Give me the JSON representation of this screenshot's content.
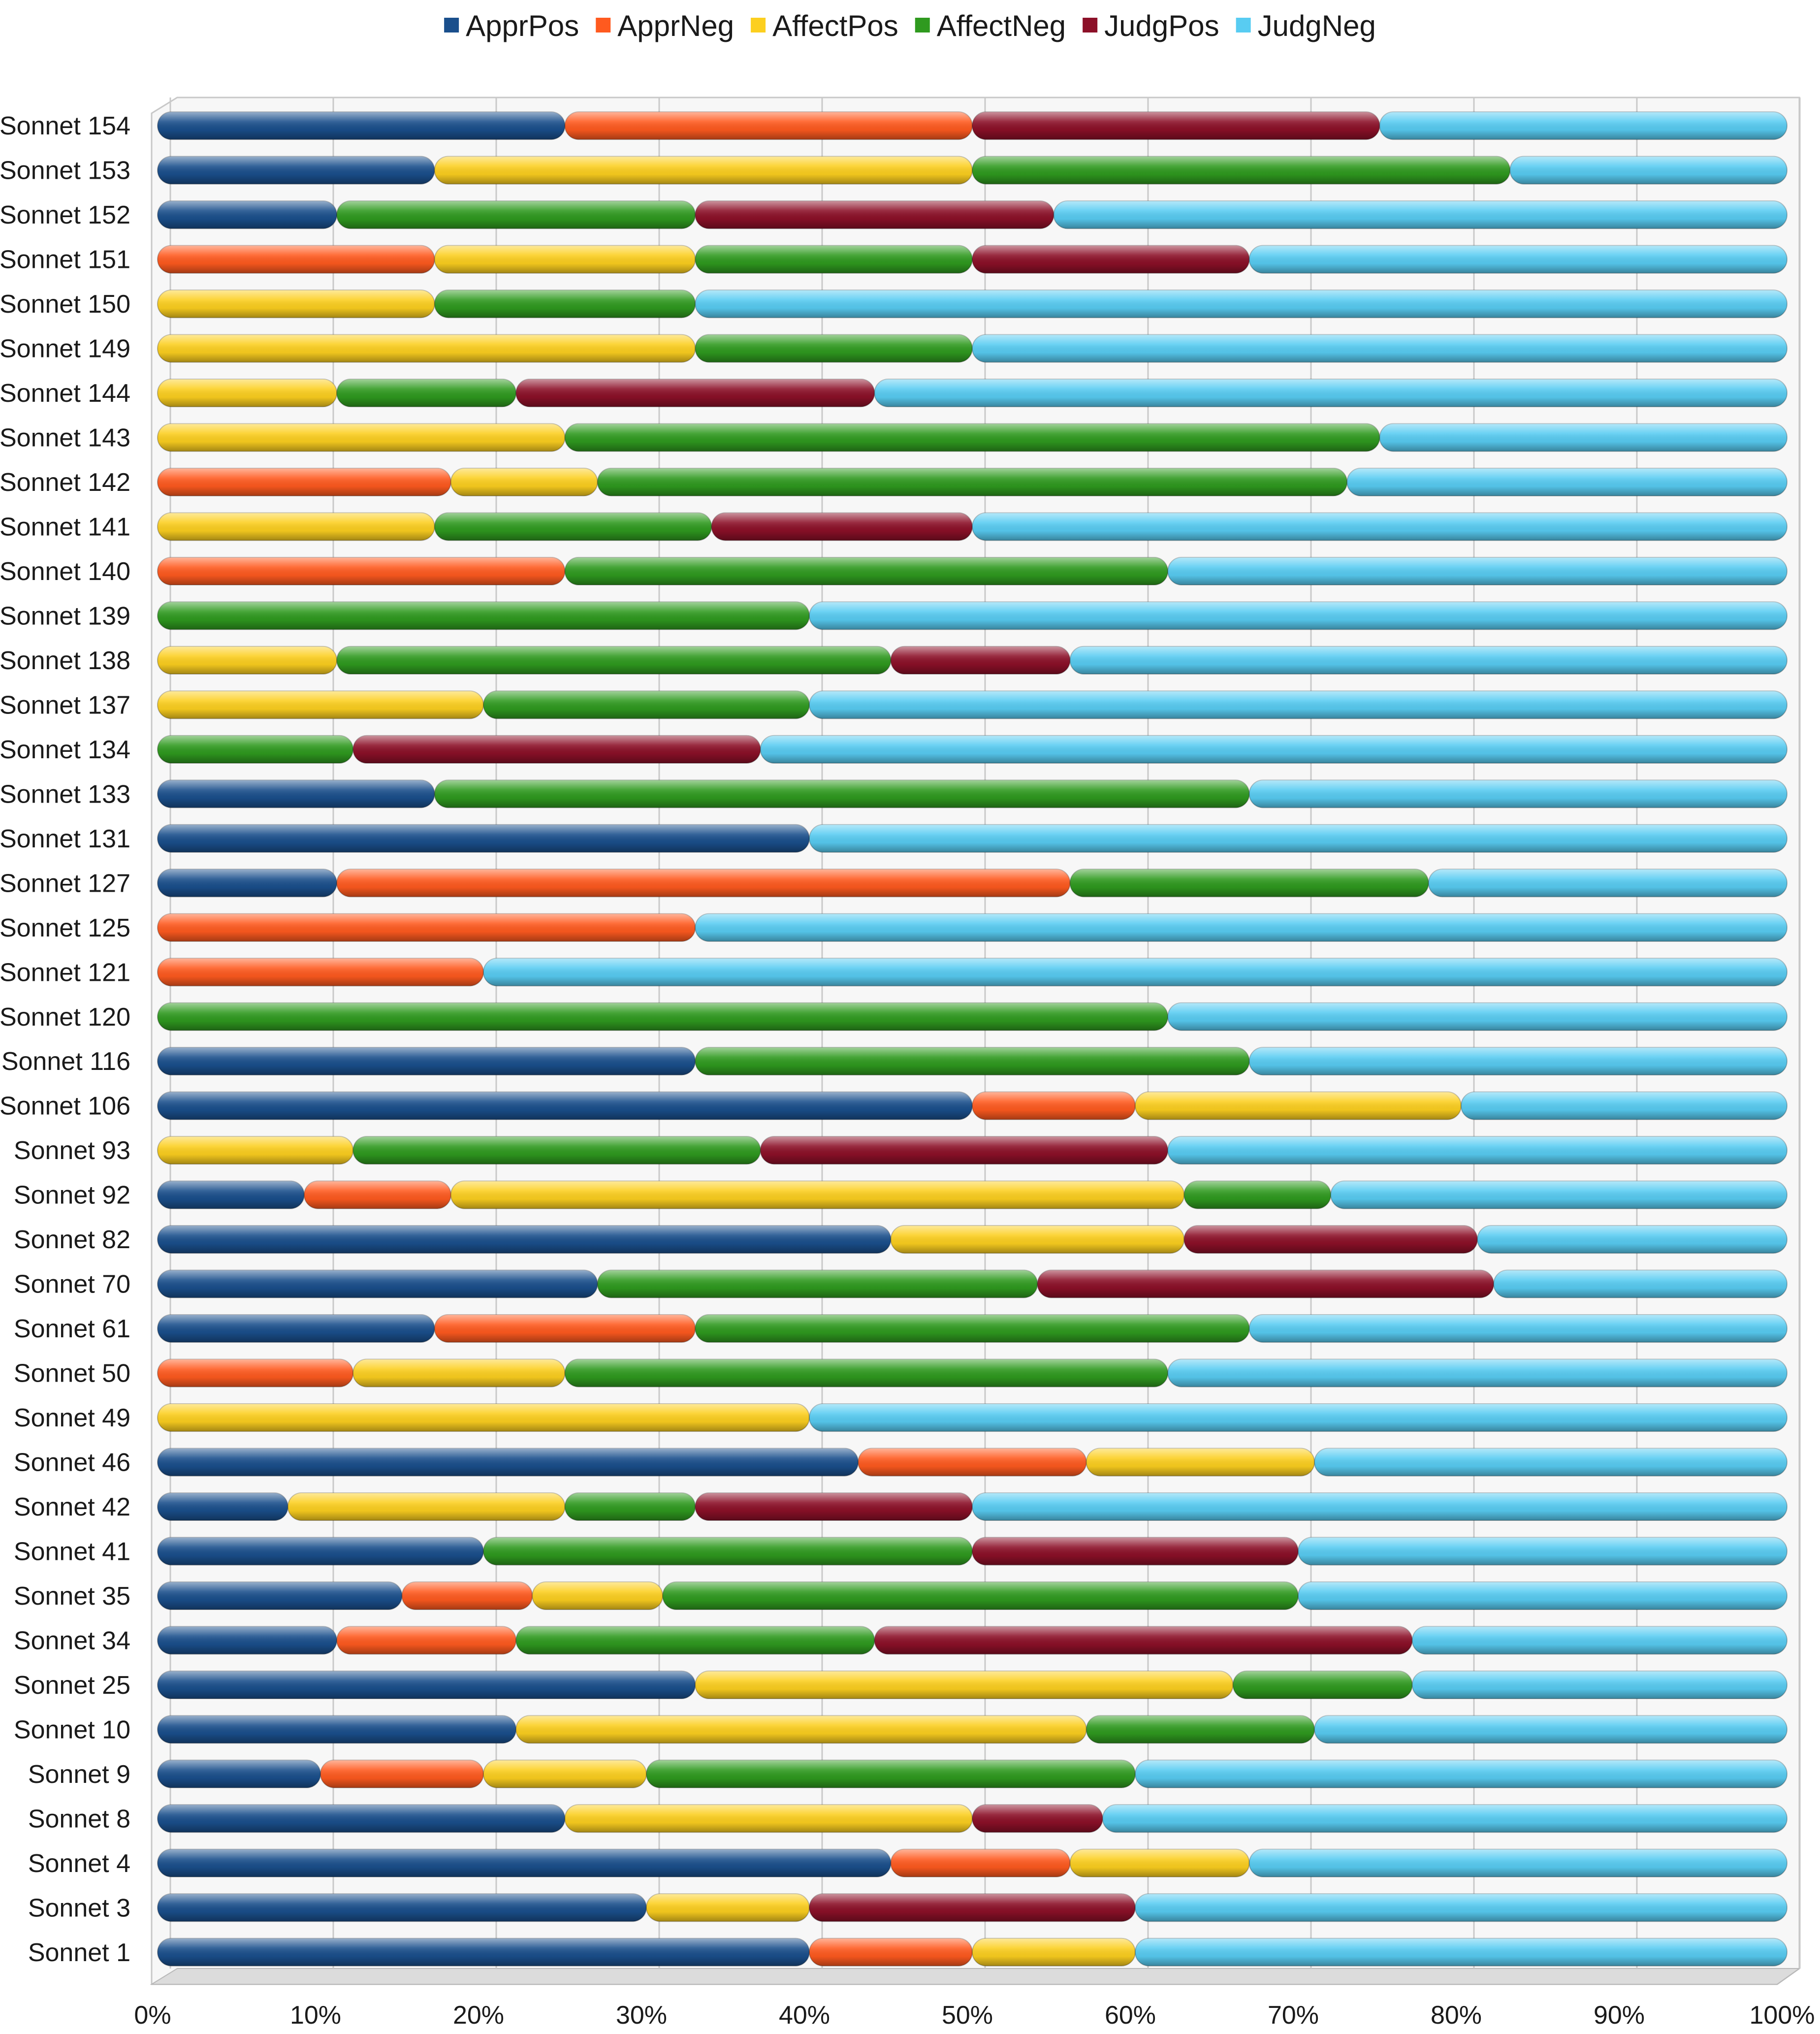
{
  "chart_data": {
    "type": "bar",
    "orientation": "horizontal",
    "stacked": "percent",
    "title": "",
    "xlabel": "",
    "ylabel": "",
    "xlim": [
      0,
      100
    ],
    "x_ticks": [
      "0%",
      "10%",
      "20%",
      "30%",
      "40%",
      "50%",
      "60%",
      "70%",
      "80%",
      "90%",
      "100%"
    ],
    "grid": true,
    "legend_position": "top-center",
    "colors": {
      "ApprPos": "#1a4f8c",
      "ApprNeg": "#ff5a1f",
      "AffectPos": "#fccf1f",
      "AffectNeg": "#2f9a1f",
      "JudgPos": "#8c1028",
      "JudgNeg": "#58ccf2"
    },
    "categories": [
      "Sonnet 154",
      "Sonnet 153",
      "Sonnet 152",
      "Sonnet 151",
      "Sonnet 150",
      "Sonnet 149",
      "Sonnet 144",
      "Sonnet 143",
      "Sonnet 142",
      "Sonnet 141",
      "Sonnet 140",
      "Sonnet 139",
      "Sonnet 138",
      "Sonnet 137",
      "Sonnet 134",
      "Sonnet 133",
      "Sonnet 131",
      "Sonnet 127",
      "Sonnet 125",
      "Sonnet 121",
      "Sonnet 120",
      "Sonnet 116",
      "Sonnet 106",
      "Sonnet 93",
      "Sonnet 92",
      "Sonnet 82",
      "Sonnet 70",
      "Sonnet 61",
      "Sonnet 50",
      "Sonnet 49",
      "Sonnet 46",
      "Sonnet 42",
      "Sonnet 41",
      "Sonnet 35",
      "Sonnet 34",
      "Sonnet 25",
      "Sonnet 10",
      "Sonnet 9",
      "Sonnet 8",
      "Sonnet 4",
      "Sonnet 3",
      "Sonnet 1"
    ],
    "series": [
      {
        "name": "ApprPos",
        "values": [
          25,
          17,
          11,
          0,
          0,
          0,
          0,
          0,
          0,
          0,
          0,
          0,
          0,
          0,
          0,
          17,
          40,
          11,
          0,
          0,
          0,
          33,
          50,
          0,
          9,
          45,
          27,
          17,
          0,
          0,
          43,
          8,
          20,
          15,
          11,
          33,
          22,
          10,
          25,
          45,
          30,
          40
        ]
      },
      {
        "name": "ApprNeg",
        "values": [
          25,
          0,
          0,
          17,
          0,
          0,
          0,
          0,
          18,
          0,
          25,
          0,
          0,
          0,
          0,
          0,
          0,
          45,
          33,
          20,
          0,
          0,
          10,
          0,
          9,
          0,
          0,
          16,
          12,
          0,
          14,
          0,
          0,
          8,
          11,
          0,
          0,
          10,
          0,
          11,
          0,
          10
        ]
      },
      {
        "name": "AffectPos",
        "values": [
          0,
          33,
          0,
          16,
          17,
          33,
          11,
          25,
          9,
          17,
          0,
          0,
          11,
          20,
          0,
          0,
          0,
          0,
          0,
          0,
          0,
          0,
          20,
          12,
          45,
          18,
          0,
          0,
          13,
          40,
          14,
          17,
          0,
          8,
          0,
          33,
          35,
          10,
          25,
          11,
          10,
          10
        ]
      },
      {
        "name": "AffectNeg",
        "values": [
          0,
          33,
          22,
          17,
          16,
          17,
          11,
          50,
          46,
          17,
          37,
          40,
          34,
          20,
          12,
          50,
          0,
          22,
          0,
          0,
          62,
          34,
          0,
          25,
          9,
          0,
          27,
          34,
          37,
          0,
          0,
          8,
          30,
          39,
          22,
          11,
          14,
          30,
          0,
          0,
          0,
          0
        ]
      },
      {
        "name": "JudgPos",
        "values": [
          25,
          0,
          22,
          17,
          0,
          0,
          22,
          0,
          0,
          16,
          0,
          0,
          11,
          0,
          25,
          0,
          0,
          0,
          0,
          0,
          0,
          0,
          0,
          25,
          0,
          18,
          28,
          0,
          0,
          0,
          0,
          17,
          20,
          0,
          33,
          0,
          0,
          0,
          8,
          0,
          20,
          0
        ]
      },
      {
        "name": "JudgNeg",
        "values": [
          25,
          17,
          45,
          33,
          67,
          50,
          56,
          25,
          27,
          50,
          38,
          60,
          44,
          60,
          63,
          33,
          60,
          22,
          67,
          80,
          38,
          33,
          20,
          38,
          28,
          19,
          18,
          33,
          38,
          60,
          29,
          50,
          30,
          30,
          23,
          23,
          29,
          40,
          42,
          33,
          40,
          40
        ]
      }
    ]
  }
}
